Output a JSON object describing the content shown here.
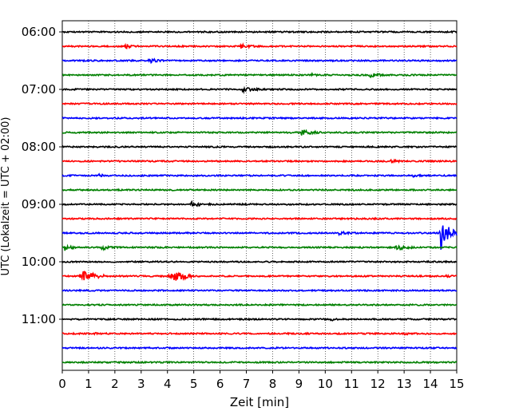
{
  "chart_data": {
    "type": "line",
    "xlabel": "Zeit  [min]",
    "ylabel": "UTC (Lokalzeit = UTC + 02:00)",
    "xlim": [
      0,
      15
    ],
    "x_ticks": [
      0,
      1,
      2,
      3,
      4,
      5,
      6,
      7,
      8,
      9,
      10,
      11,
      12,
      13,
      14,
      15
    ],
    "x_tick_labels": [
      "0",
      "1",
      "2",
      "3",
      "4",
      "5",
      "6",
      "7",
      "8",
      "9",
      "10",
      "11",
      "12",
      "13",
      "14",
      "15"
    ],
    "vertical_grid": "dotted",
    "trace_interval_min": 15,
    "trace_colors": [
      "#000000",
      "#ff0000",
      "#0000ff",
      "#008000"
    ],
    "y_ticks": [
      {
        "trace_index": 0,
        "label": "06:00"
      },
      {
        "trace_index": 4,
        "label": "07:00"
      },
      {
        "trace_index": 8,
        "label": "08:00"
      },
      {
        "trace_index": 12,
        "label": "09:00"
      },
      {
        "trace_index": 16,
        "label": "10:00"
      },
      {
        "trace_index": 20,
        "label": "11:00"
      }
    ],
    "traces": [
      {
        "start": "06:00",
        "color": "#000000",
        "events": []
      },
      {
        "start": "06:15",
        "color": "#ff0000",
        "events": [
          {
            "t": 2.4,
            "amp": 0.35,
            "dur": 0.5
          },
          {
            "t": 6.8,
            "amp": 0.4,
            "dur": 0.6
          }
        ]
      },
      {
        "start": "06:30",
        "color": "#0000ff",
        "events": [
          {
            "t": 3.3,
            "amp": 0.4,
            "dur": 0.6
          }
        ]
      },
      {
        "start": "06:45",
        "color": "#008000",
        "events": [
          {
            "t": 9.5,
            "amp": 0.2,
            "dur": 0.3
          },
          {
            "t": 11.7,
            "amp": 0.35,
            "dur": 0.7
          }
        ]
      },
      {
        "start": "07:00",
        "color": "#000000",
        "events": [
          {
            "t": 6.8,
            "amp": 0.45,
            "dur": 0.8
          }
        ]
      },
      {
        "start": "07:15",
        "color": "#ff0000",
        "events": []
      },
      {
        "start": "07:30",
        "color": "#0000ff",
        "events": []
      },
      {
        "start": "07:45",
        "color": "#008000",
        "events": [
          {
            "t": 9.1,
            "amp": 0.5,
            "dur": 0.8
          }
        ]
      },
      {
        "start": "08:00",
        "color": "#000000",
        "events": []
      },
      {
        "start": "08:15",
        "color": "#ff0000",
        "events": [
          {
            "t": 12.5,
            "amp": 0.2,
            "dur": 0.6
          }
        ]
      },
      {
        "start": "08:30",
        "color": "#0000ff",
        "events": [
          {
            "t": 1.4,
            "amp": 0.25,
            "dur": 0.3
          },
          {
            "t": 13.3,
            "amp": 0.2,
            "dur": 0.4
          }
        ]
      },
      {
        "start": "08:45",
        "color": "#008000",
        "events": []
      },
      {
        "start": "09:00",
        "color": "#000000",
        "events": [
          {
            "t": 4.9,
            "amp": 0.45,
            "dur": 0.7
          }
        ]
      },
      {
        "start": "09:15",
        "color": "#ff0000",
        "events": []
      },
      {
        "start": "09:30",
        "color": "#0000ff",
        "events": [
          {
            "t": 10.5,
            "amp": 0.25,
            "dur": 0.8
          },
          {
            "t": 14.4,
            "amp": 3.0,
            "dur": 0.6
          }
        ]
      },
      {
        "start": "09:45",
        "color": "#008000",
        "events": [
          {
            "t": 0.1,
            "amp": 0.55,
            "dur": 0.5
          },
          {
            "t": 1.5,
            "amp": 0.45,
            "dur": 0.6
          },
          {
            "t": 12.7,
            "amp": 0.55,
            "dur": 0.7
          }
        ]
      },
      {
        "start": "10:00",
        "color": "#000000",
        "events": []
      },
      {
        "start": "10:15",
        "color": "#ff0000",
        "events": [
          {
            "t": 0.7,
            "amp": 1.2,
            "dur": 0.9
          },
          {
            "t": 4.1,
            "amp": 1.3,
            "dur": 0.9
          },
          {
            "t": 14.6,
            "amp": 0.2,
            "dur": 0.4
          }
        ]
      },
      {
        "start": "10:30",
        "color": "#0000ff",
        "events": []
      },
      {
        "start": "10:45",
        "color": "#008000",
        "events": [
          {
            "t": 7.8,
            "amp": 0.2,
            "dur": 0.3
          }
        ]
      },
      {
        "start": "11:00",
        "color": "#000000",
        "events": [
          {
            "t": 10.2,
            "amp": 0.25,
            "dur": 0.4
          }
        ]
      },
      {
        "start": "11:15",
        "color": "#ff0000",
        "events": [
          {
            "t": 1.2,
            "amp": 0.25,
            "dur": 0.5
          },
          {
            "t": 13.0,
            "amp": 0.25,
            "dur": 0.4
          }
        ]
      },
      {
        "start": "11:30",
        "color": "#0000ff",
        "events": []
      },
      {
        "start": "11:45",
        "color": "#008000",
        "events": []
      }
    ]
  }
}
